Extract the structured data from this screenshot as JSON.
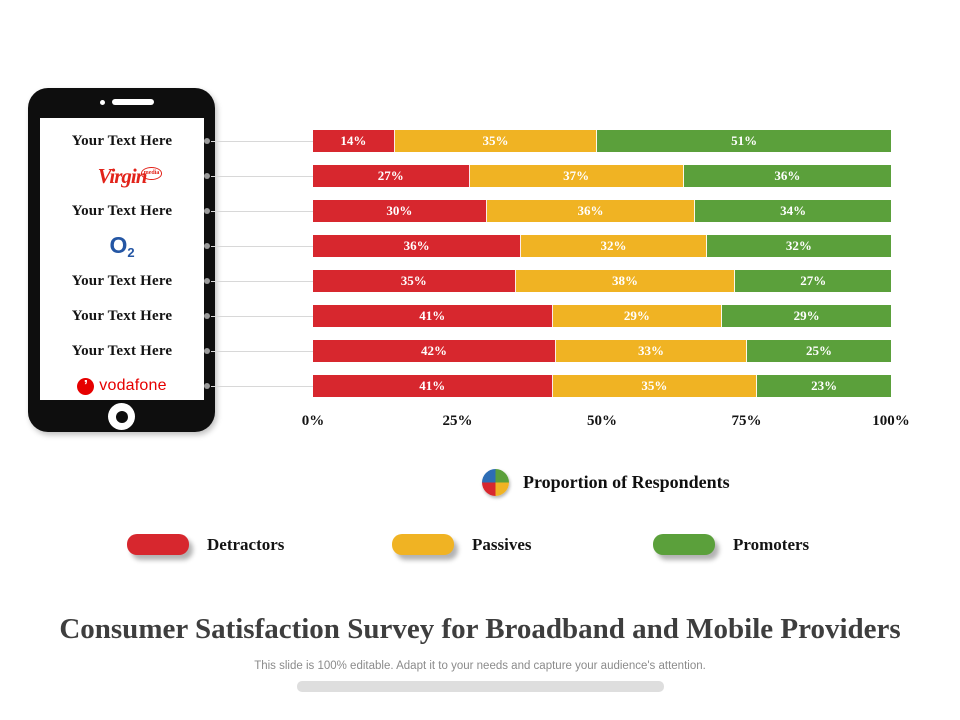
{
  "colors": {
    "detractor": "#d7272e",
    "passive": "#f0b323",
    "promoter": "#5ba03b",
    "virgin_red": "#e2231a",
    "o2_blue": "#2456a4",
    "vodafone_red": "#e60000",
    "pie_blue": "#2d6db5"
  },
  "phone": {
    "rows": [
      {
        "type": "text",
        "label": "Your Text Here"
      },
      {
        "type": "virgin-media",
        "label": "Virgin",
        "sub": "media"
      },
      {
        "type": "text",
        "label": "Your Text Here"
      },
      {
        "type": "o2",
        "label": "O",
        "sub": "2"
      },
      {
        "type": "text",
        "label": "Your Text Here"
      },
      {
        "type": "text",
        "label": "Your Text Here"
      },
      {
        "type": "text",
        "label": "Your Text Here"
      },
      {
        "type": "vodafone",
        "label": "vodafone",
        "icon_glyph": "’"
      }
    ]
  },
  "chart_data": {
    "type": "bar",
    "orientation": "horizontal-stacked",
    "categories": [
      "Your Text Here",
      "Virgin Media",
      "Your Text Here",
      "O2",
      "Your Text Here",
      "Your Text Here",
      "Your Text Here",
      "Vodafone"
    ],
    "series": [
      {
        "name": "Detractors",
        "color": "#d7272e",
        "values": [
          14,
          27,
          30,
          36,
          35,
          41,
          42,
          41
        ]
      },
      {
        "name": "Passives",
        "color": "#f0b323",
        "values": [
          35,
          37,
          36,
          32,
          38,
          29,
          33,
          35
        ]
      },
      {
        "name": "Promoters",
        "color": "#5ba03b",
        "values": [
          51,
          36,
          34,
          32,
          27,
          29,
          25,
          23
        ]
      }
    ],
    "value_suffix": "%",
    "x_axis_ticks": [
      "0%",
      "25%",
      "50%",
      "75%",
      "100%"
    ],
    "xlim": [
      0,
      100
    ],
    "grid": false,
    "legend_position": "bottom",
    "caption": "Proportion of Respondents"
  },
  "caption": {
    "label": "Proportion of Respondents",
    "pie_colors": [
      "#5ba03b",
      "#f0b323",
      "#d7272e",
      "#2d6db5"
    ]
  },
  "legend": {
    "items": [
      {
        "label": "Detractors",
        "color": "#d7272e"
      },
      {
        "label": "Passives",
        "color": "#f0b323"
      },
      {
        "label": "Promoters",
        "color": "#5ba03b"
      }
    ]
  },
  "footer": {
    "title": "Consumer Satisfaction Survey for Broadband and Mobile Providers",
    "subtitle": "This slide is 100% editable. Adapt it to your needs and capture your audience's attention."
  }
}
